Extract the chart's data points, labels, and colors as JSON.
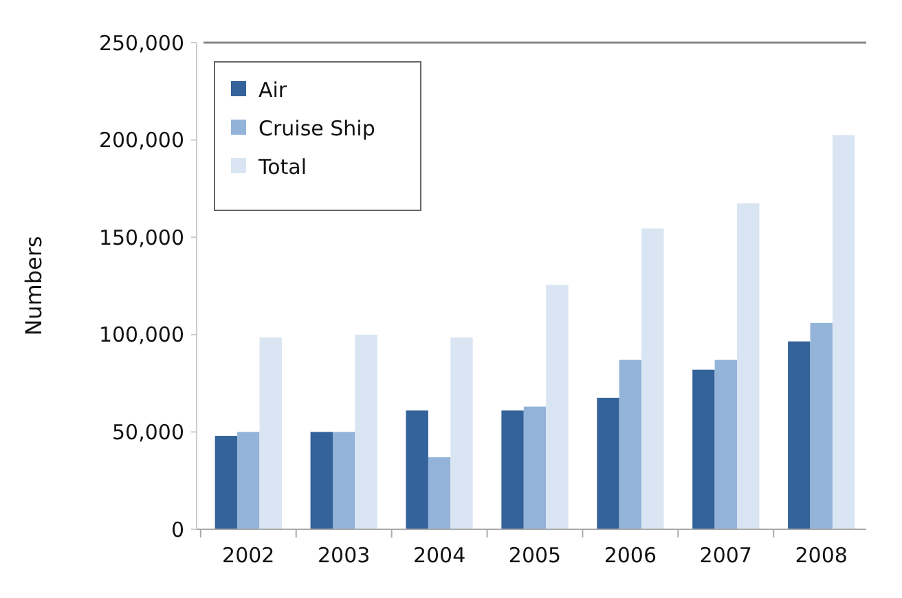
{
  "chart_data": {
    "type": "bar",
    "ylabel": "Numbers",
    "categories": [
      "2002",
      "2003",
      "2004",
      "2005",
      "2006",
      "2007",
      "2008"
    ],
    "series": [
      {
        "name": "Air",
        "color": "#34629a",
        "values": [
          48000,
          50000,
          61000,
          61000,
          67500,
          82000,
          96500
        ]
      },
      {
        "name": "Cruise Ship",
        "color": "#93b3d9",
        "values": [
          50000,
          50000,
          37000,
          63000,
          87000,
          87000,
          106000
        ]
      },
      {
        "name": "Total",
        "color": "#d9e5f2",
        "values": [
          98500,
          100000,
          98500,
          125500,
          154500,
          167500,
          202500
        ]
      }
    ],
    "ylim": [
      0,
      250000
    ],
    "yticks": [
      {
        "value": 0,
        "label": "0"
      },
      {
        "value": 50000,
        "label": "50,000"
      },
      {
        "value": 100000,
        "label": "100,000"
      },
      {
        "value": 150000,
        "label": "150,000"
      },
      {
        "value": 200000,
        "label": "200,000"
      },
      {
        "value": 250000,
        "label": "250,000"
      }
    ],
    "grid": false,
    "legend": "top left"
  }
}
